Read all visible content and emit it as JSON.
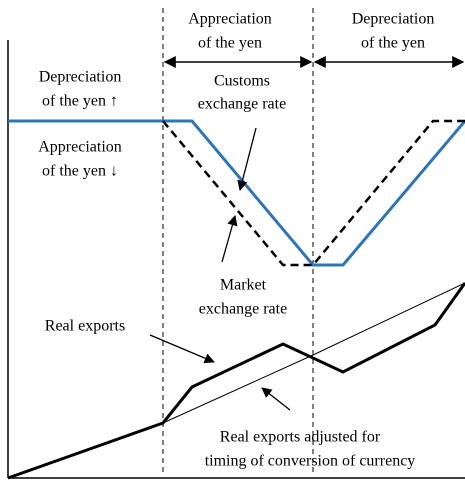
{
  "labels": {
    "period_appreciation": [
      "Appreciation",
      "of the yen"
    ],
    "period_depreciation": [
      "Depreciation",
      "of the yen"
    ],
    "axis_up": [
      "Depreciation",
      "of the yen ↑"
    ],
    "axis_down": [
      "Appreciation",
      "of the yen ↓"
    ],
    "customs": [
      "Customs",
      "exchange rate"
    ],
    "market": [
      "Market",
      "exchange rate"
    ],
    "real_exports": [
      "Real exports"
    ],
    "adjusted": [
      "Real exports adjusted for",
      "timing of conversion of currency"
    ]
  }
}
